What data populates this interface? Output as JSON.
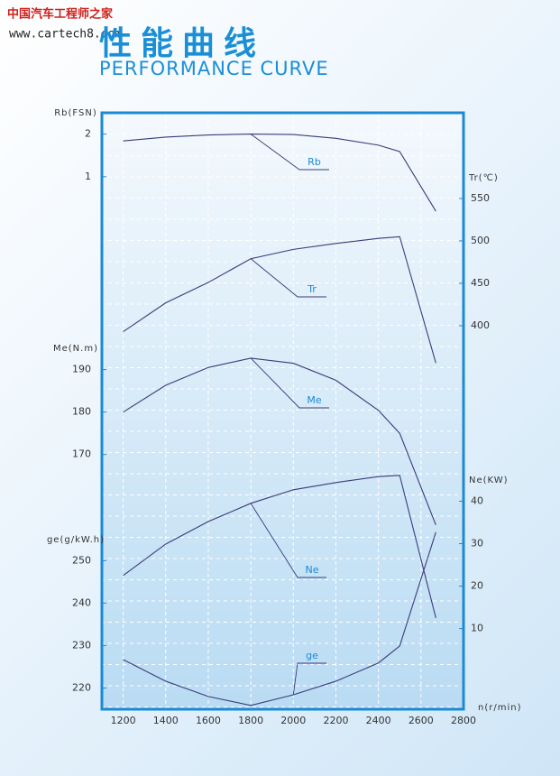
{
  "header": {
    "watermark": "中国汽车工程师之家",
    "site": "www.cartech8.com",
    "title": "性能曲线",
    "subtitle": "PERFORMANCE CURVE"
  },
  "chart_data": {
    "type": "line",
    "x": [
      1200,
      1400,
      1600,
      1800,
      2000,
      2200,
      2400,
      2500,
      2670
    ],
    "xlabel": "n(r/min)",
    "xlim": [
      1100,
      2800
    ],
    "xticks": [
      1200,
      1400,
      1600,
      1800,
      2000,
      2200,
      2400,
      2600,
      2800
    ],
    "grid": true,
    "axes": [
      {
        "label": "Rb(FSN)",
        "side": "left",
        "ylim": [
          -11.5,
          2.5
        ],
        "yticks": [
          2,
          1
        ]
      },
      {
        "label": "Me(N.m)",
        "side": "left",
        "ylim": [
          110,
          250.5
        ],
        "yticks": [
          190,
          180,
          170
        ]
      },
      {
        "label": "ge(g/kW.h)",
        "side": "left",
        "ylim": [
          215,
          355.5
        ],
        "yticks": [
          250,
          240,
          230,
          220
        ]
      },
      {
        "label": "Tr(℃)",
        "side": "right",
        "ylim": [
          -52,
          651
        ],
        "yticks": [
          550,
          500,
          450,
          400
        ]
      },
      {
        "label": "Ne(KW)",
        "side": "right",
        "ylim": [
          -9,
          131.5
        ],
        "yticks": [
          40,
          30,
          20,
          10
        ]
      }
    ],
    "series": [
      {
        "name": "Rb",
        "color": "#3b3b78",
        "axis": 0,
        "values": [
          1.84,
          1.93,
          1.98,
          2.0,
          1.99,
          1.9,
          1.74,
          1.59,
          0.19
        ]
      },
      {
        "name": "Tr",
        "color": "#3b3b78",
        "axis": 3,
        "values": [
          393,
          427,
          451,
          479,
          490,
          497,
          503,
          505,
          356
        ]
      },
      {
        "name": "Me",
        "color": "#3b3b78",
        "axis": 1,
        "values": [
          180,
          186.3,
          190.5,
          192.7,
          191.5,
          187.5,
          180.4,
          175,
          153.4
        ]
      },
      {
        "name": "Ne",
        "color": "#3b3b78",
        "axis": 4,
        "values": [
          22.5,
          29.9,
          35.2,
          39.5,
          42.7,
          44.4,
          45.8,
          46.1,
          12.5
        ]
      },
      {
        "name": "ge",
        "color": "#3b3b78",
        "axis": 2,
        "values": [
          226.7,
          221.6,
          218,
          215.9,
          218.4,
          221.6,
          225.9,
          229.9,
          256.7
        ]
      }
    ]
  }
}
